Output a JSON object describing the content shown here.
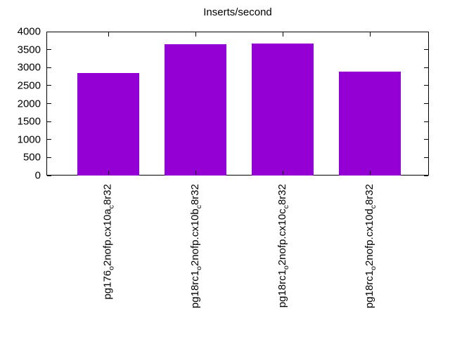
{
  "chart_data": {
    "type": "bar",
    "title": "Inserts/second",
    "xlabel": "",
    "ylabel": "",
    "ylim": [
      0,
      4000
    ],
    "yticks": [
      0,
      500,
      1000,
      1500,
      2000,
      2500,
      3000,
      3500,
      4000
    ],
    "grid": false,
    "legend": "none",
    "bar_color": "#9400d3",
    "frame_color": "#000000",
    "categories": [
      "pg176o2nofp.cx10ac8r32",
      "pg18rc1o2nofp.cx10bc8r32",
      "pg18rc1o2nofp.cx10cc8r32",
      "pg18rc1o2nofp.cx10dc8r32"
    ],
    "categories_rich": [
      [
        {
          "t": "pg176"
        },
        {
          "t": "o",
          "sub": true
        },
        {
          "t": "2nofp.cx10a"
        },
        {
          "t": "c",
          "sub": true
        },
        {
          "t": "8r32"
        }
      ],
      [
        {
          "t": "pg18rc1"
        },
        {
          "t": "o",
          "sub": true
        },
        {
          "t": "2nofp.cx10b"
        },
        {
          "t": "c",
          "sub": true
        },
        {
          "t": "8r32"
        }
      ],
      [
        {
          "t": "pg18rc1"
        },
        {
          "t": "o",
          "sub": true
        },
        {
          "t": "2nofp.cx10c"
        },
        {
          "t": "c",
          "sub": true
        },
        {
          "t": "8r32"
        }
      ],
      [
        {
          "t": "pg18rc1"
        },
        {
          "t": "o",
          "sub": true
        },
        {
          "t": "2nofp.cx10d"
        },
        {
          "t": "c",
          "sub": true
        },
        {
          "t": "8r32"
        }
      ]
    ],
    "values": [
      2850,
      3655,
      3670,
      2885
    ]
  }
}
